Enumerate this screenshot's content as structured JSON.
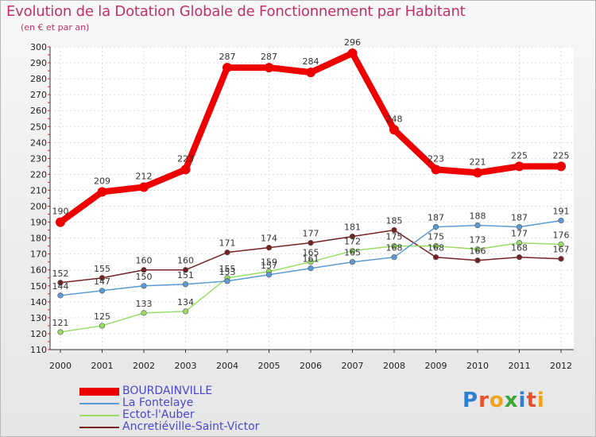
{
  "title": "Evolution de la Dotation Globale de Fonctionnement par Habitant",
  "subtitle": "(en € et par an)",
  "logo": {
    "text": "Proxiti",
    "colors": [
      "#2f7fd0",
      "#e8502d",
      "#f0a21a",
      "#3aa63a",
      "#2f7fd0",
      "#e8502d",
      "#f0a21a"
    ]
  },
  "chart_data": {
    "type": "line",
    "x": [
      "2000",
      "2001",
      "2002",
      "2003",
      "2004",
      "2005",
      "2006",
      "2007",
      "2008",
      "2009",
      "2010",
      "2011",
      "2012"
    ],
    "ylim": [
      110,
      300
    ],
    "yticks": [
      110,
      120,
      130,
      140,
      150,
      160,
      170,
      180,
      190,
      200,
      210,
      220,
      230,
      240,
      250,
      260,
      270,
      280,
      290,
      300
    ],
    "grid": true,
    "legend_position": "bottom-left",
    "series": [
      {
        "name": "BOURDAINVILLE",
        "color": "#ee0000",
        "values": [
          190,
          209,
          212,
          223,
          287,
          287,
          284,
          296,
          248,
          223,
          221,
          225,
          225
        ]
      },
      {
        "name": "La Fontelaye",
        "color": "#5b9bd5",
        "values": [
          144,
          147,
          150,
          151,
          153,
          157,
          161,
          165,
          168,
          187,
          188,
          187,
          191
        ]
      },
      {
        "name": "Ectot-l'Auber",
        "color": "#99dd66",
        "values": [
          121,
          125,
          133,
          134,
          155,
          159,
          165,
          172,
          175,
          175,
          173,
          177,
          176
        ]
      },
      {
        "name": "Ancretiéville-Saint-Victor",
        "color": "#772222",
        "values": [
          152,
          155,
          160,
          160,
          171,
          174,
          177,
          181,
          185,
          168,
          166,
          168,
          167
        ]
      }
    ]
  }
}
